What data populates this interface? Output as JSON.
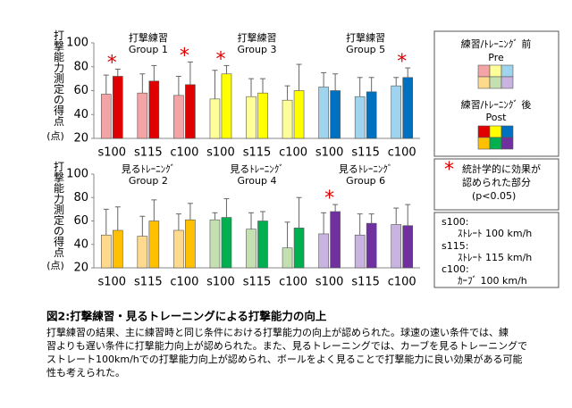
{
  "chart_data": [
    {
      "type": "bar",
      "ylabel": "打撃能力測定の得点",
      "yunit": "(点)",
      "categories": [
        "s100",
        "s115",
        "c100",
        "s100",
        "s115",
        "c100",
        "s100",
        "s115",
        "c100"
      ],
      "groups": [
        {
          "label": "打撃練習",
          "name": "Group 1"
        },
        {
          "label": "打撃練習",
          "name": "Group 3"
        },
        {
          "label": "打撃練習",
          "name": "Group 5"
        }
      ],
      "series": [
        {
          "name": "Pre",
          "colors": [
            "#f4a3a6",
            "#f4a3a6",
            "#f4a3a6",
            "#ffff99",
            "#ffff99",
            "#ffff99",
            "#9fd3ee",
            "#9fd3ee",
            "#9fd3ee"
          ],
          "values": [
            57,
            58,
            56,
            53,
            55,
            52,
            63,
            55,
            64
          ],
          "errors": [
            16,
            16,
            16,
            24,
            15,
            12,
            12,
            16,
            7
          ]
        },
        {
          "name": "Post",
          "colors": [
            "#e00000",
            "#e00000",
            "#e00000",
            "#ffff00",
            "#ffff00",
            "#ffff00",
            "#0070c0",
            "#0070c0",
            "#0070c0"
          ],
          "values": [
            72,
            68,
            65,
            74,
            58,
            60,
            60,
            59,
            71
          ],
          "errors": [
            6,
            13,
            19,
            7,
            12,
            22,
            14,
            12,
            8
          ]
        }
      ],
      "marker": "*",
      "significant": [
        0,
        2,
        3,
        8
      ],
      "ylim": [
        20,
        100
      ],
      "yticks": [
        20,
        40,
        60,
        80,
        100
      ]
    },
    {
      "type": "bar",
      "ylabel": "打撃能力測定の得点",
      "yunit": "(点)",
      "categories": [
        "s100",
        "s115",
        "c100",
        "s100",
        "s115",
        "c100",
        "s100",
        "s115",
        "c100"
      ],
      "groups": [
        {
          "label": "見るﾄﾚｰﾆﾝｸﾞ",
          "name": "Group 2"
        },
        {
          "label": "見るﾄﾚｰﾆﾝｸﾞ",
          "name": "Group 4"
        },
        {
          "label": "見るﾄﾚｰﾆﾝｸﾞ",
          "name": "Group 6"
        }
      ],
      "series": [
        {
          "name": "Pre",
          "colors": [
            "#ffd98c",
            "#ffd98c",
            "#ffd98c",
            "#c5e0b0",
            "#c5e0b0",
            "#c5e0b0",
            "#c9b3e0",
            "#c9b3e0",
            "#c9b3e0"
          ],
          "values": [
            48,
            47,
            52,
            61,
            53,
            37,
            49,
            48,
            57
          ],
          "errors": [
            22,
            17,
            14,
            6,
            14,
            22,
            18,
            18,
            14
          ]
        },
        {
          "name": "Post",
          "colors": [
            "#ffc000",
            "#ffc000",
            "#ffc000",
            "#00b050",
            "#00b050",
            "#00b050",
            "#7030a0",
            "#7030a0",
            "#7030a0"
          ],
          "values": [
            52,
            60,
            61,
            63,
            60,
            54,
            68,
            58,
            56
          ],
          "errors": [
            20,
            18,
            14,
            16,
            8,
            26,
            6,
            8,
            18
          ]
        }
      ],
      "marker": "*",
      "significant": [
        6
      ],
      "ylim": [
        20,
        100
      ],
      "yticks": [
        20,
        40,
        60,
        80,
        100
      ]
    }
  ],
  "legend": {
    "pre_label": "練習/ﾄﾚｰﾆﾝｸﾞ 前",
    "post_label": "練習/ﾄﾚｰﾆﾝｸﾞ 後",
    "sig_lines": [
      "統計学的に効果が",
      "認められた部分",
      "(p<0.05)"
    ],
    "conditions": [
      "s100:",
      "ｽﾄﾚｰﾄ 100 km/h",
      "s115:",
      "ｽﾄﾚｰﾄ 115 km/h",
      "c100:",
      "ｶｰﾌﾞ 100 km/h"
    ]
  },
  "caption": {
    "title": "図2:打撃練習・見るトレーニングによる打撃能力の向上",
    "lines": [
      "打撃練習の結果、主に練習時と同じ条件における打撃能力の向上が認められた。球速の速い条件では、練",
      "習よりも遅い条件に打撃能力向上が認められた。また、見るトレーニングでは、カーブを見るトレーニングで",
      "ストレート100km/hでの打撃能力向上が認められ、ボールをよく見ることで打撃能力に良い効果がある可能",
      "性も考えられた。"
    ]
  }
}
